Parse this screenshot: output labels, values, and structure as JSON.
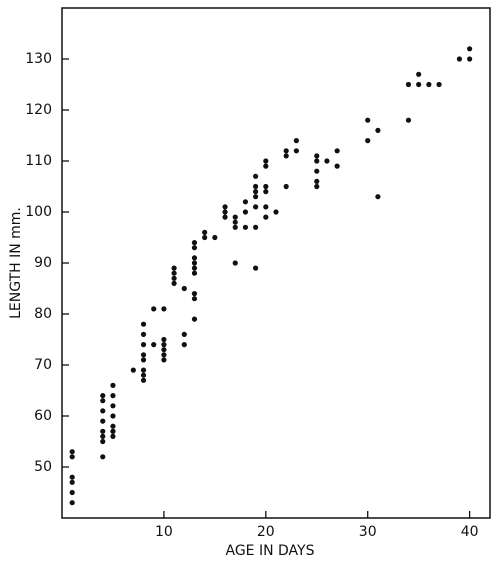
{
  "chart_data": {
    "type": "scatter",
    "x_label": "AGE IN DAYS",
    "y_label": "LENGTH IN mm.",
    "x": [
      1,
      1,
      1,
      1,
      1,
      1,
      4,
      4,
      4,
      4,
      4,
      4,
      4,
      4,
      5,
      5,
      5,
      5,
      5,
      5,
      5,
      5,
      7,
      8,
      8,
      8,
      8,
      8,
      8,
      8,
      8,
      9,
      9,
      10,
      10,
      10,
      10,
      10,
      10,
      11,
      11,
      11,
      11,
      12,
      12,
      12,
      13,
      13,
      13,
      13,
      13,
      13,
      13,
      13,
      13,
      14,
      14,
      15,
      16,
      16,
      16,
      17,
      17,
      17,
      17,
      18,
      18,
      18,
      19,
      19,
      19,
      19,
      19,
      19,
      19,
      20,
      20,
      20,
      20,
      20,
      20,
      21,
      22,
      22,
      22,
      23,
      23,
      25,
      25,
      25,
      25,
      25,
      26,
      27,
      27,
      30,
      30,
      31,
      31,
      34,
      34,
      35,
      35,
      36,
      37,
      39,
      40,
      40
    ],
    "values": [
      53,
      52,
      48,
      47,
      45,
      43,
      64,
      63,
      61,
      59,
      57,
      56,
      55,
      52,
      66,
      64,
      62,
      60,
      58,
      57,
      56,
      57,
      69,
      78,
      76,
      74,
      72,
      71,
      69,
      68,
      67,
      81,
      74,
      81,
      75,
      74,
      73,
      72,
      71,
      89,
      88,
      87,
      86,
      85,
      76,
      74,
      94,
      93,
      91,
      90,
      89,
      88,
      84,
      83,
      79,
      96,
      95,
      95,
      101,
      100,
      99,
      99,
      98,
      97,
      90,
      102,
      100,
      97,
      107,
      105,
      104,
      103,
      101,
      97,
      89,
      110,
      109,
      105,
      104,
      101,
      99,
      100,
      112,
      111,
      105,
      114,
      112,
      111,
      110,
      108,
      106,
      105,
      110,
      112,
      109,
      118,
      114,
      116,
      103,
      125,
      118,
      127,
      125,
      125,
      125,
      130,
      132,
      130
    ],
    "color": "#111111",
    "xlim": [
      0,
      42
    ],
    "xticks": [
      10,
      20,
      30,
      40
    ],
    "ylim": [
      40,
      140
    ],
    "yticks": [
      50,
      60,
      70,
      80,
      90,
      100,
      110,
      120,
      130
    ]
  }
}
